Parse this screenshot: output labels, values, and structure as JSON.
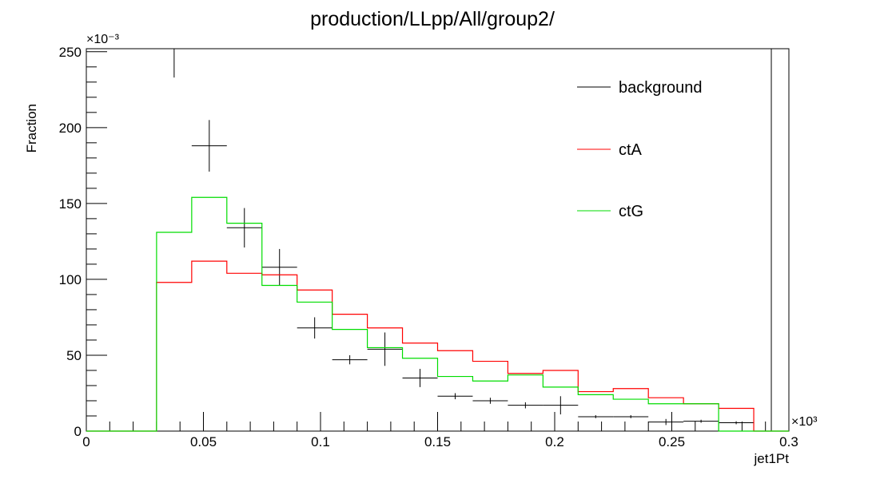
{
  "chart_data": {
    "type": "line",
    "title": "production/LLpp/All/group2/",
    "xlabel": "jet1Pt",
    "ylabel": "Fraction",
    "x_multiplier": "×10³",
    "y_multiplier": "×10⁻³",
    "xlim": [
      0,
      0.3
    ],
    "ylim": [
      0,
      252
    ],
    "x_ticks": [
      {
        "value": 0,
        "label": "0"
      },
      {
        "value": 0.05,
        "label": "0.05"
      },
      {
        "value": 0.1,
        "label": "0.1"
      },
      {
        "value": 0.15,
        "label": "0.15"
      },
      {
        "value": 0.2,
        "label": "0.2"
      },
      {
        "value": 0.25,
        "label": "0.25"
      },
      {
        "value": 0.3,
        "label": "0.3"
      }
    ],
    "y_ticks": [
      {
        "value": 0,
        "label": "0"
      },
      {
        "value": 50,
        "label": "50"
      },
      {
        "value": 100,
        "label": "100"
      },
      {
        "value": 150,
        "label": "150"
      },
      {
        "value": 200,
        "label": "200"
      },
      {
        "value": 250,
        "label": "250"
      }
    ],
    "legend_position": "top-right",
    "grid": false,
    "bin_edges": [
      0,
      0.015,
      0.03,
      0.045,
      0.06,
      0.075,
      0.09,
      0.105,
      0.12,
      0.135,
      0.15,
      0.165,
      0.18,
      0.195,
      0.21,
      0.225,
      0.24,
      0.255,
      0.27,
      0.285,
      0.3
    ],
    "series": [
      {
        "name": "background",
        "style": "error-points",
        "color": "#000000",
        "points": [
          {
            "x": 0.0375,
            "y": 258,
            "err": 25,
            "half_width": 0.0075
          },
          {
            "x": 0.0525,
            "y": 188,
            "err": 17,
            "half_width": 0.0075
          },
          {
            "x": 0.0675,
            "y": 134,
            "err": 13,
            "half_width": 0.0075
          },
          {
            "x": 0.0825,
            "y": 108,
            "err": 12,
            "half_width": 0.0075
          },
          {
            "x": 0.0975,
            "y": 68,
            "err": 7,
            "half_width": 0.0075
          },
          {
            "x": 0.1125,
            "y": 47,
            "err": 3,
            "half_width": 0.0075
          },
          {
            "x": 0.1275,
            "y": 54,
            "err": 11,
            "half_width": 0.0075
          },
          {
            "x": 0.1425,
            "y": 35,
            "err": 6,
            "half_width": 0.0075
          },
          {
            "x": 0.1575,
            "y": 23,
            "err": 2,
            "half_width": 0.0075
          },
          {
            "x": 0.1725,
            "y": 20,
            "err": 2,
            "half_width": 0.0075
          },
          {
            "x": 0.1875,
            "y": 17,
            "err": 2,
            "half_width": 0.0075
          },
          {
            "x": 0.2025,
            "y": 17,
            "err": 6,
            "half_width": 0.0075
          },
          {
            "x": 0.2175,
            "y": 9.5,
            "err": 1,
            "half_width": 0.0075
          },
          {
            "x": 0.2325,
            "y": 9.5,
            "err": 1,
            "half_width": 0.0075
          },
          {
            "x": 0.2475,
            "y": 6,
            "err": 2,
            "half_width": 0.0075
          },
          {
            "x": 0.2625,
            "y": 6.5,
            "err": 1,
            "half_width": 0.0075
          },
          {
            "x": 0.2775,
            "y": 5.5,
            "err": 1,
            "half_width": 0.0075
          },
          {
            "x": 0.2925,
            "y": 260,
            "err": 0,
            "half_width": 0.0075
          }
        ]
      },
      {
        "name": "ctA",
        "style": "step",
        "color": "#ff0000",
        "values": [
          0,
          0,
          98,
          112,
          104,
          103,
          93,
          77,
          68,
          58,
          53,
          46,
          38,
          40,
          26,
          28,
          22,
          18,
          15,
          0
        ]
      },
      {
        "name": "ctG",
        "style": "step",
        "color": "#00dd00",
        "values": [
          0,
          0,
          131,
          154,
          137,
          96,
          85,
          67,
          55,
          48,
          36,
          33,
          37,
          29,
          24,
          21,
          18,
          18,
          0,
          0
        ]
      }
    ]
  }
}
